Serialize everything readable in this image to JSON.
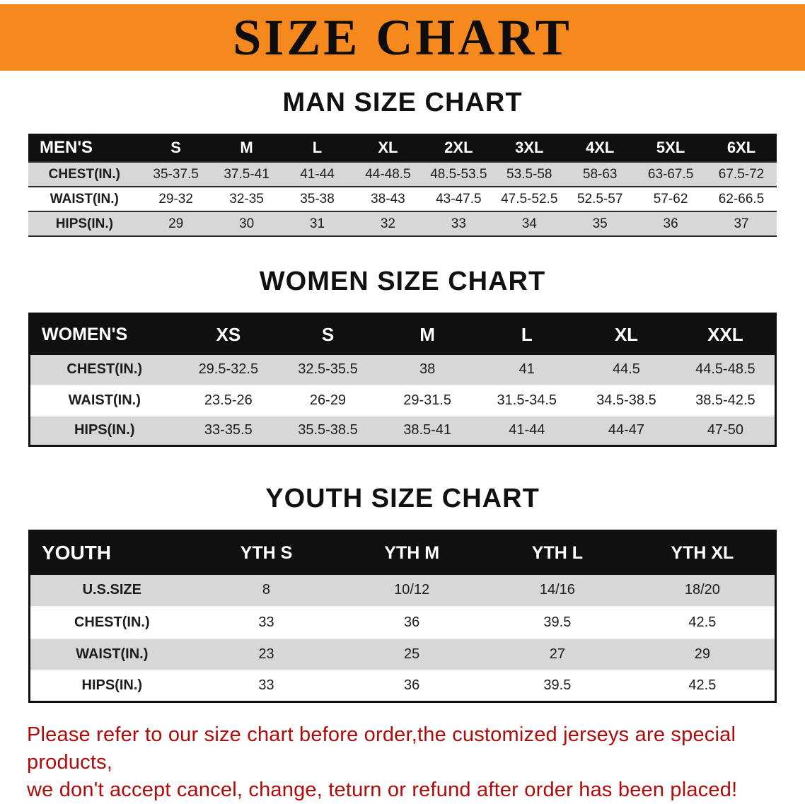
{
  "banner": {
    "title": "SIZE CHART",
    "background_color": "#F5891D",
    "text_color": "#0D0D0D"
  },
  "sections": [
    {
      "heading": "MAN SIZE CHART",
      "table": {
        "header": [
          "MEN'S",
          "S",
          "M",
          "L",
          "XL",
          "2XL",
          "3XL",
          "4XL",
          "5XL",
          "6XL"
        ],
        "rows": [
          {
            "label": "CHEST(IN.)",
            "values": [
              "35-37.5",
              "37.5-41",
              "41-44",
              "44-48.5",
              "48.5-53.5",
              "53.5-58",
              "58-63",
              "63-67.5",
              "67.5-72"
            ]
          },
          {
            "label": "WAIST(IN.)",
            "values": [
              "29-32",
              "32-35",
              "35-38",
              "38-43",
              "43-47.5",
              "47.5-52.5",
              "52.5-57",
              "57-62",
              "62-66.5"
            ]
          },
          {
            "label": "HIPS(IN.)",
            "values": [
              "29",
              "30",
              "31",
              "32",
              "33",
              "34",
              "35",
              "36",
              "37"
            ]
          }
        ]
      }
    },
    {
      "heading": "WOMEN SIZE CHART",
      "table": {
        "header": [
          "WOMEN'S",
          "XS",
          "S",
          "M",
          "L",
          "XL",
          "XXL"
        ],
        "rows": [
          {
            "label": "CHEST(IN.)",
            "values": [
              "29.5-32.5",
              "32.5-35.5",
              "38",
              "41",
              "44.5",
              "44.5-48.5"
            ]
          },
          {
            "label": "WAIST(IN.)",
            "values": [
              "23.5-26",
              "26-29",
              "29-31.5",
              "31.5-34.5",
              "34.5-38.5",
              "38.5-42.5"
            ]
          },
          {
            "label": "HIPS(IN.)",
            "values": [
              "33-35.5",
              "35.5-38.5",
              "38.5-41",
              "41-44",
              "44-47",
              "47-50"
            ]
          }
        ]
      }
    },
    {
      "heading": "YOUTH SIZE CHART",
      "table": {
        "header": [
          "YOUTH",
          "YTH S",
          "YTH M",
          "YTH L",
          "YTH XL"
        ],
        "rows": [
          {
            "label": "U.S.SIZE",
            "values": [
              "8",
              "10/12",
              "14/16",
              "18/20"
            ]
          },
          {
            "label": "CHEST(IN.)",
            "values": [
              "33",
              "36",
              "39.5",
              "42.5"
            ]
          },
          {
            "label": "WAIST(IN.)",
            "values": [
              "23",
              "25",
              "27",
              "29"
            ]
          },
          {
            "label": "HIPS(IN.)",
            "values": [
              "33",
              "36",
              "39.5",
              "42.5"
            ]
          }
        ]
      }
    }
  ],
  "disclaimer": {
    "lines": [
      "Please refer to our size chart before order,the customized jerseys are special products,",
      "we don't accept cancel, change, teturn or refund after order has been placed!"
    ],
    "color": "#B20A0A"
  }
}
